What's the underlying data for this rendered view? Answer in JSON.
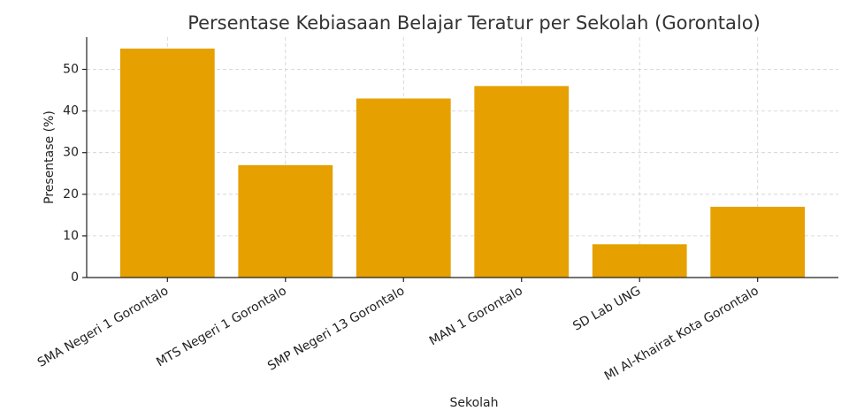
{
  "chart_data": {
    "type": "bar",
    "title": "Persentase Kebiasaan Belajar Teratur per Sekolah (Gorontalo)",
    "xlabel": "Sekolah",
    "ylabel": "Presentase (%)",
    "categories": [
      "SMA Negeri 1 Gorontalo",
      "MTS Negeri 1 Gorontalo",
      "SMP Negeri 13 Gorontalo",
      "MAN 1 Gorontalo",
      "SD Lab UNG",
      "MI Al-Khairat Kota Gorontalo"
    ],
    "values": [
      55,
      27,
      43,
      46,
      8,
      17
    ],
    "color": "#e6a000",
    "ylim": [
      0,
      57.75
    ],
    "yticks": [
      0,
      10,
      20,
      30,
      40,
      50
    ],
    "grid": true
  }
}
